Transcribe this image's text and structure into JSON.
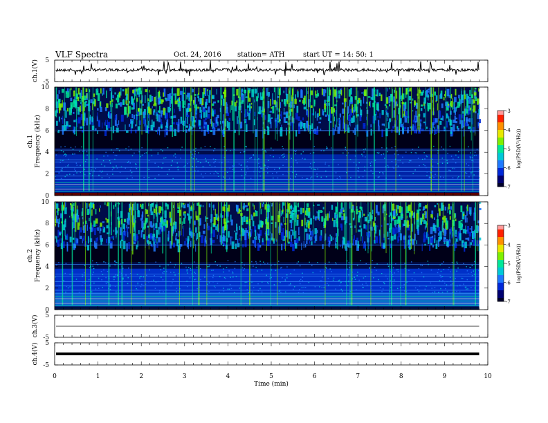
{
  "header": {
    "title": "VLF  Spectra",
    "date": "Oct. 24, 2016",
    "station": "station= ATH",
    "start": "start  UT  =    14: 50: 1"
  },
  "chart_data": [
    {
      "type": "line",
      "title": "",
      "ylabel": "ch.1(V)",
      "ylim": [
        -5,
        5
      ],
      "yticks": [
        "5",
        "-5"
      ],
      "description_of_values": "baseline near +0.4 V with small noise and sporadic spikes",
      "baseline": 0.4
    },
    {
      "type": "heatmap",
      "ylabel_channel": "ch.1",
      "ylabel": "Frequency  (kHz)",
      "ylim": [
        0,
        10
      ],
      "yticks": [
        "0",
        "2",
        "4",
        "6",
        "8",
        "10"
      ],
      "colorbar": {
        "label": "log(PSD(V^2/Hz))",
        "range": [
          -7,
          -3
        ],
        "ticks": [
          "-3",
          "-4",
          "-5",
          "-6",
          "-7"
        ]
      }
    },
    {
      "type": "heatmap",
      "ylabel_channel": "ch.2",
      "ylabel": "Frequency  (kHz)",
      "ylim": [
        0,
        10
      ],
      "yticks": [
        "0",
        "2",
        "4",
        "6",
        "8",
        "10"
      ],
      "colorbar": {
        "label": "log(PSD(V^2/Hz))",
        "range": [
          -7,
          -3
        ],
        "ticks": [
          "-3",
          "-4",
          "-5",
          "-6",
          "-7"
        ]
      }
    },
    {
      "type": "line",
      "ylabel": "ch.3(V)",
      "ylim": [
        -5,
        5
      ],
      "yticks": [
        "5",
        "-5"
      ],
      "baseline": 0.0
    },
    {
      "type": "line",
      "ylabel": "ch.4(V)",
      "ylim": [
        -5,
        5
      ],
      "yticks": [
        "5",
        "-5"
      ],
      "baseline": 0.0
    }
  ],
  "xaxis": {
    "label": "Time  (min)",
    "range": [
      0,
      10
    ],
    "ticks": [
      "0",
      "1",
      "2",
      "3",
      "4",
      "5",
      "6",
      "7",
      "8",
      "9",
      "10"
    ],
    "data_end_min": 9.8
  },
  "colorbar_title": "log(PSD(V²/Hz))"
}
